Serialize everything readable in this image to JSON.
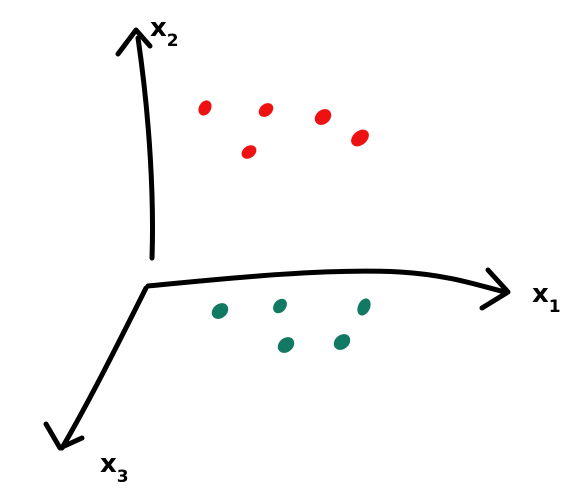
{
  "axes": {
    "x1": {
      "label": "x",
      "subscript": "1"
    },
    "x2": {
      "label": "x",
      "subscript": "2"
    },
    "x3": {
      "label": "x",
      "subscript": "3"
    }
  },
  "colors": {
    "axis": "#000000",
    "cluster_red": "#ee1111",
    "cluster_green": "#127a62"
  },
  "clusters": [
    {
      "name": "red-cluster",
      "color_key": "cluster_red",
      "point_count": 5
    },
    {
      "name": "green-cluster",
      "color_key": "cluster_green",
      "point_count": 5
    }
  ]
}
